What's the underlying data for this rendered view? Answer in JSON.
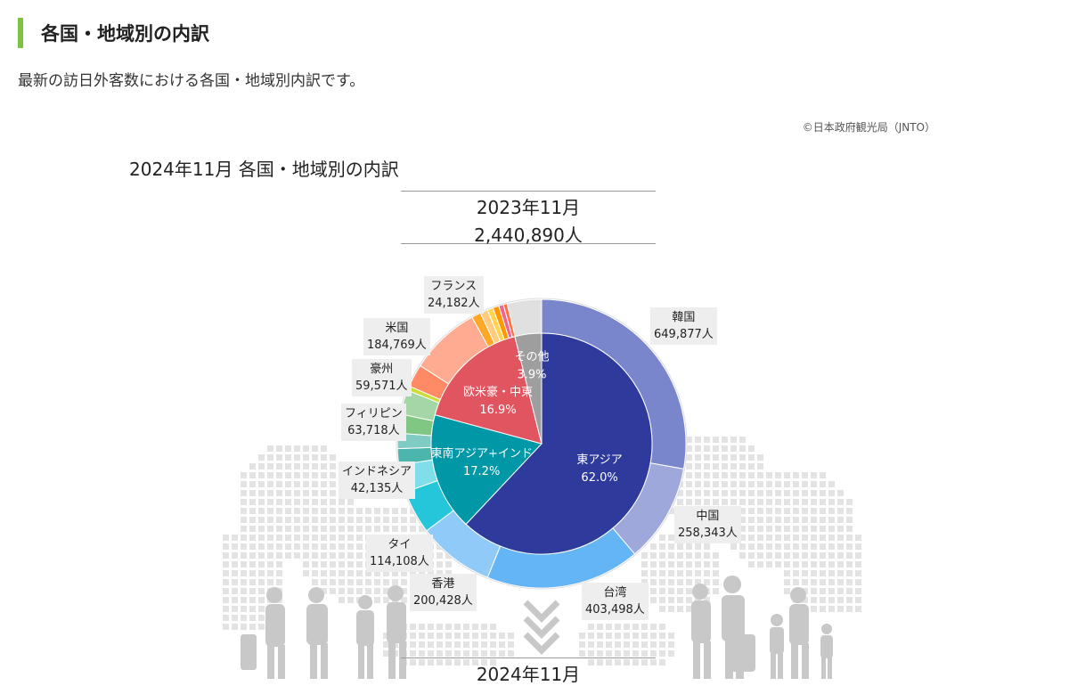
{
  "header": {
    "title": "各国・地域別の内訳",
    "intro": "最新の訪日外客数における各国・地域別内訳です。",
    "credit": "©日本政府観光局（JNTO）",
    "accent_color": "#7dc242"
  },
  "chart_header": {
    "title": "2024年11月 各国・地域別の内訳",
    "previous_period": "2023年11月",
    "previous_total": "2,440,890人",
    "current_period": "2024年11月"
  },
  "chart_data": {
    "type": "pie",
    "title": "2024年11月 各国・地域別の内訳",
    "inner_ring": [
      {
        "label": "東アジア",
        "share_text": "62.0%",
        "value": 62.0,
        "color": "#2e3b9c"
      },
      {
        "label": "東南アジア+インド",
        "share_text": "17.2%",
        "value": 17.2,
        "color": "#0097a7"
      },
      {
        "label": "欧米豪・中東",
        "share_text": "16.9%",
        "value": 16.9,
        "color": "#e05560"
      },
      {
        "label": "その他",
        "share_text": "3.9%",
        "value": 3.9,
        "color": "#9e9e9e"
      }
    ],
    "outer_ring": [
      {
        "name": "韓国",
        "value_text": "649,877人",
        "value": 649877,
        "color": "#7986cb"
      },
      {
        "name": "中国",
        "value_text": "258,343人",
        "value": 258343,
        "color": "#9fa8da"
      },
      {
        "name": "台湾",
        "value_text": "403,498人",
        "value": 403498,
        "color": "#64b5f6"
      },
      {
        "name": "香港",
        "value_text": "200,428人",
        "value": 200428,
        "color": "#90caf9"
      },
      {
        "name": "タイ",
        "value_text": "114,108人",
        "value": 114108,
        "color": "#26c6da"
      },
      {
        "name": "",
        "value_text": "",
        "value": 72000,
        "color": "#80deea"
      },
      {
        "name": "インドネシア",
        "value_text": "42,135人",
        "value": 42135,
        "color": "#4db6ac"
      },
      {
        "name": "",
        "value_text": "",
        "value": 40000,
        "color": "#80cbc4"
      },
      {
        "name": "",
        "value_text": "",
        "value": 50000,
        "color": "#81c784"
      },
      {
        "name": "フィリピン",
        "value_text": "63,718人",
        "value": 63718,
        "color": "#a5d6a7"
      },
      {
        "name": "",
        "value_text": "",
        "value": 12000,
        "color": "#cddc39"
      },
      {
        "name": "豪州",
        "value_text": "59,571人",
        "value": 59571,
        "color": "#ff8a65"
      },
      {
        "name": "米国",
        "value_text": "184,769人",
        "value": 184769,
        "color": "#ffab91"
      },
      {
        "name": "フランス",
        "value_text": "24,182人",
        "value": 24182,
        "color": "#ffa726"
      },
      {
        "name": "",
        "value_text": "",
        "value": 20000,
        "color": "#ffcc80"
      },
      {
        "name": "",
        "value_text": "",
        "value": 15000,
        "color": "#ffd54f"
      },
      {
        "name": "",
        "value_text": "",
        "value": 16000,
        "color": "#ff9800"
      },
      {
        "name": "",
        "value_text": "",
        "value": 12000,
        "color": "#f06292"
      },
      {
        "name": "",
        "value_text": "",
        "value": 10000,
        "color": "#ff7043"
      },
      {
        "name": "",
        "value_text": "",
        "value": 90000,
        "color": "#e0e0e0"
      }
    ]
  }
}
